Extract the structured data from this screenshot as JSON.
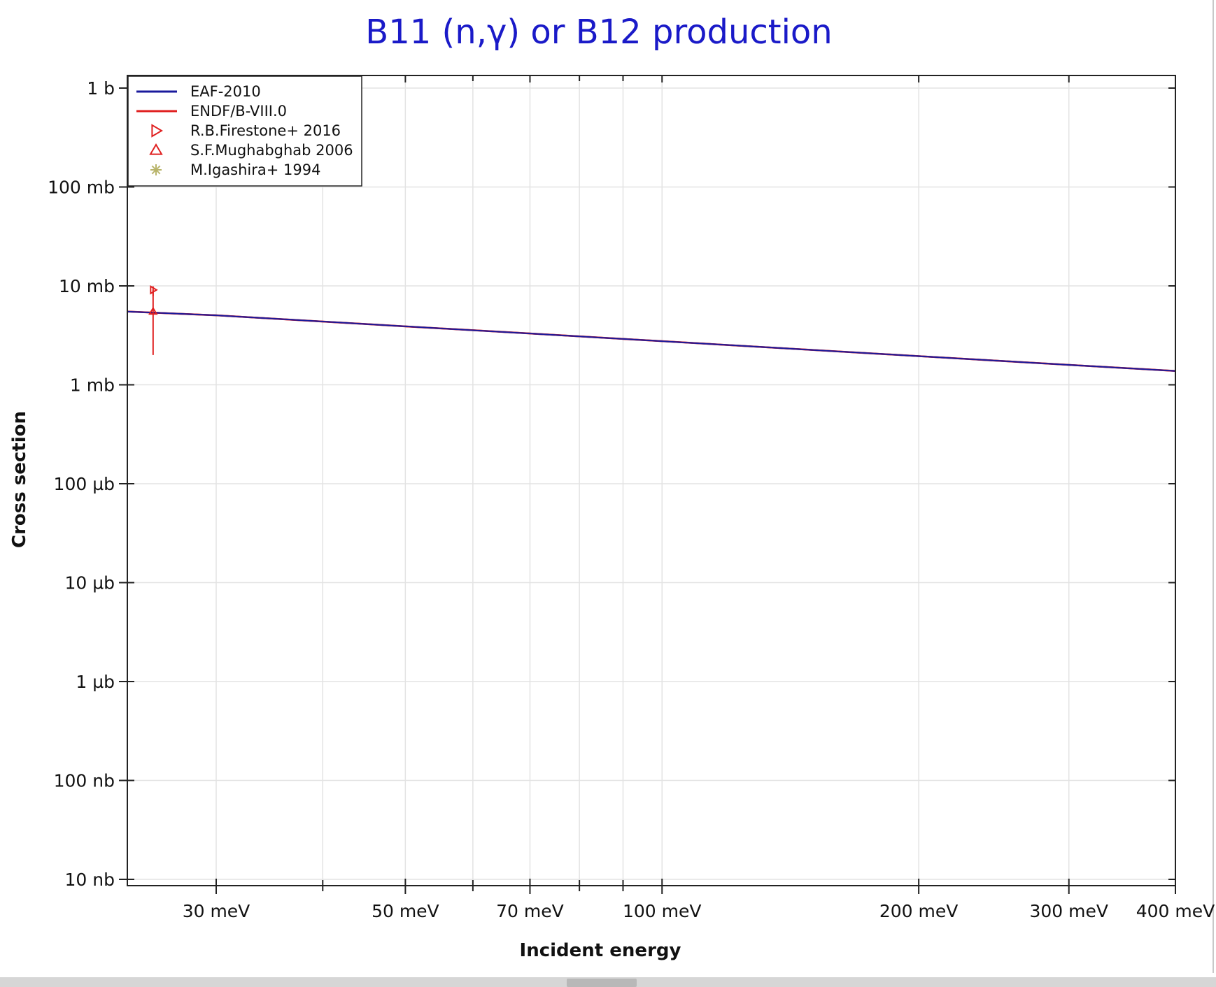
{
  "chart_data": {
    "type": "line",
    "title": "B11 (n,γ) or B12 production",
    "xlabel": "Incident energy",
    "ylabel": "Cross section",
    "x_scale": "log",
    "y_scale": "log",
    "x_unit": "eV",
    "y_unit": "b",
    "xlim": [
      0.0236,
      0.4
    ],
    "ylim": [
      1e-08,
      1.0
    ],
    "x_ticks": [
      {
        "value": 0.03,
        "label": "30 meV"
      },
      {
        "value": 0.05,
        "label": "50 meV"
      },
      {
        "value": 0.07,
        "label": "70 meV"
      },
      {
        "value": 0.1,
        "label": "100 meV"
      },
      {
        "value": 0.2,
        "label": "200 meV"
      },
      {
        "value": 0.3,
        "label": "300 meV"
      },
      {
        "value": 0.4,
        "label": "400 meV"
      }
    ],
    "x_minor_ticks": [
      0.04,
      0.06,
      0.08,
      0.09
    ],
    "y_ticks": [
      {
        "value": 1.0,
        "label": "1 b"
      },
      {
        "value": 0.1,
        "label": "100 mb"
      },
      {
        "value": 0.01,
        "label": "10 mb"
      },
      {
        "value": 0.001,
        "label": "1 mb"
      },
      {
        "value": 0.0001,
        "label": "100 µb"
      },
      {
        "value": 1e-05,
        "label": "10 µb"
      },
      {
        "value": 1e-06,
        "label": "1 µb"
      },
      {
        "value": 1e-07,
        "label": "100 nb"
      },
      {
        "value": 1e-08,
        "label": "10 nb"
      }
    ],
    "grid": true,
    "legend_position": "top-left",
    "series": [
      {
        "name": "EAF-2010",
        "kind": "line",
        "color": "#1a1a9c",
        "x": [
          0.0236,
          0.03,
          0.05,
          0.07,
          0.1,
          0.2,
          0.3,
          0.4
        ],
        "y": [
          0.0055,
          0.00504,
          0.0039,
          0.0033,
          0.00276,
          0.00195,
          0.00159,
          0.00138
        ]
      },
      {
        "name": "ENDF/B-VIII.0",
        "kind": "line",
        "color": "#e02020",
        "x": [
          0.0236,
          0.03,
          0.05,
          0.07,
          0.1,
          0.2,
          0.3,
          0.4
        ],
        "y": [
          0.0055,
          0.00504,
          0.0039,
          0.0033,
          0.00276,
          0.00195,
          0.00159,
          0.00138
        ]
      },
      {
        "name": "R.B.Firestone+ 2016",
        "kind": "marker",
        "marker": "triangle-right",
        "color": "#e02020",
        "x": [
          0.0253
        ],
        "y": [
          0.0091
        ],
        "y_err_low": [
          0.0079
        ],
        "y_err_high": [
          0.0099
        ]
      },
      {
        "name": "S.F.Mughabghab 2006",
        "kind": "marker",
        "marker": "triangle-up",
        "color": "#e02020",
        "x": [
          0.0253
        ],
        "y": [
          0.0055
        ],
        "y_err_low": [
          0.002
        ],
        "y_err_high": [
          0.0091
        ]
      },
      {
        "name": "M.Igashira+ 1994",
        "kind": "marker",
        "marker": "asterisk",
        "color": "#b8b46a",
        "x": [],
        "y": []
      }
    ]
  }
}
